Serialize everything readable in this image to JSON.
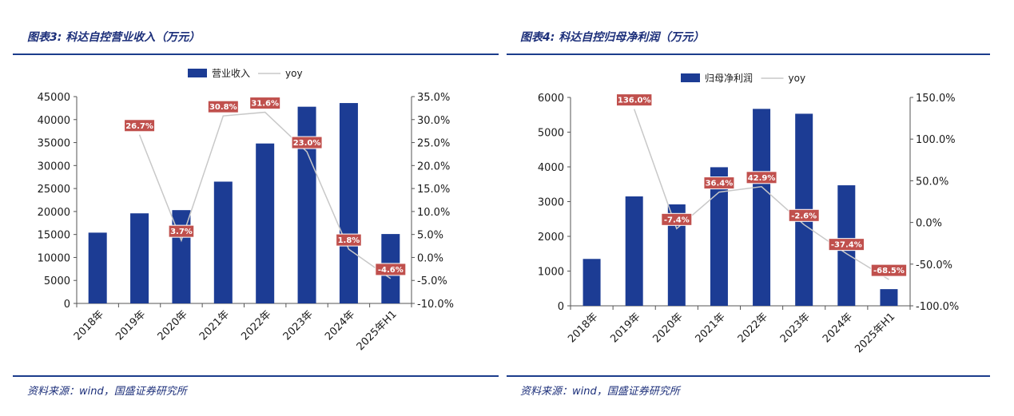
{
  "colors": {
    "bar": "#1c3c94",
    "line": "#c8c8c8",
    "label_bg": "#c0504d",
    "rule": "#1c3c8c",
    "title": "#1c2f7a"
  },
  "left": {
    "title": "图表3:  科达自控营业收入（万元）",
    "source": "资料来源：wind，国盛证券研究所"
  },
  "right": {
    "title": "图表4:  科达自控归母净利润（万元）",
    "source": "资料来源：wind，国盛证券研究所"
  },
  "chart_data": [
    {
      "type": "bar",
      "categories": [
        "2018年",
        "2019年",
        "2020年",
        "2021年",
        "2022年",
        "2023年",
        "2024年",
        "2025年H1"
      ],
      "series": [
        {
          "name": "营业收入",
          "type": "bar",
          "axis": "left",
          "values": [
            15400,
            19600,
            20300,
            26500,
            34800,
            42800,
            43600,
            15100
          ]
        },
        {
          "name": "yoy",
          "type": "line",
          "axis": "right",
          "values": [
            null,
            26.7,
            3.7,
            30.8,
            31.6,
            23.0,
            1.8,
            -4.6
          ],
          "labels": [
            null,
            "26.7%",
            "3.7%",
            "30.8%",
            "31.6%",
            "23.0%",
            "1.8%",
            "-4.6%"
          ]
        }
      ],
      "ylim_left": [
        0,
        45000
      ],
      "yticks_left": [
        "0",
        "5000",
        "10000",
        "15000",
        "20000",
        "25000",
        "30000",
        "35000",
        "40000",
        "45000"
      ],
      "ylim_right": [
        -10,
        35
      ],
      "yticks_right": [
        "-10.0%",
        "-5.0%",
        "0.0%",
        "5.0%",
        "10.0%",
        "15.0%",
        "20.0%",
        "25.0%",
        "30.0%",
        "35.0%"
      ],
      "legend": "top",
      "grid": false
    },
    {
      "type": "bar",
      "categories": [
        "2018年",
        "2019年",
        "2020年",
        "2021年",
        "2022年",
        "2023年",
        "2024年",
        "2025年H1"
      ],
      "series": [
        {
          "name": "归母净利润",
          "type": "bar",
          "axis": "left",
          "values": [
            1350,
            3150,
            2920,
            3990,
            5670,
            5530,
            3470,
            480
          ]
        },
        {
          "name": "yoy",
          "type": "line",
          "axis": "right",
          "values": [
            null,
            136.0,
            -7.4,
            36.4,
            42.9,
            -2.6,
            -37.4,
            -68.5
          ],
          "labels": [
            null,
            "136.0%",
            "-7.4%",
            "36.4%",
            "42.9%",
            "-2.6%",
            "-37.4%",
            "-68.5%"
          ]
        }
      ],
      "ylim_left": [
        0,
        6000
      ],
      "yticks_left": [
        "0",
        "1000",
        "2000",
        "3000",
        "4000",
        "5000",
        "6000"
      ],
      "ylim_right": [
        -100,
        150
      ],
      "yticks_right": [
        "-100.0%",
        "-50.0%",
        "0.0%",
        "50.0%",
        "100.0%",
        "150.0%"
      ],
      "legend": "top",
      "grid": false
    }
  ]
}
